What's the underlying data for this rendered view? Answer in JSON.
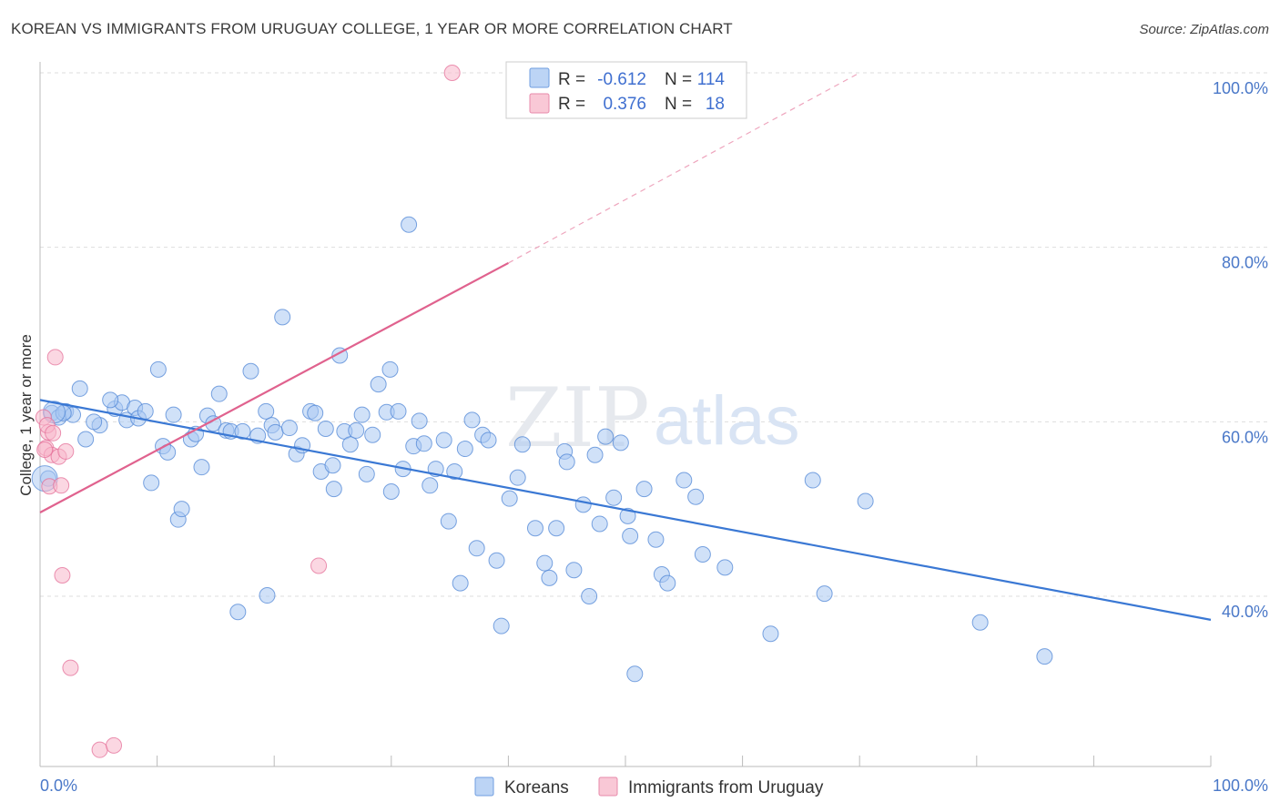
{
  "header": {
    "title": "KOREAN VS IMMIGRANTS FROM URUGUAY COLLEGE, 1 YEAR OR MORE CORRELATION CHART",
    "source": "Source: ZipAtlas.com"
  },
  "watermark": {
    "zip": "ZIP",
    "atlas": "atlas"
  },
  "legend_box": {
    "rows": [
      {
        "r_label": "R =",
        "r_value": "-0.612",
        "n_label": "N =",
        "n_value": "114",
        "color": "#a9c8f2"
      },
      {
        "r_label": "R =",
        "r_value": "0.376",
        "n_label": "N =",
        "n_value": "18",
        "color": "#f7b6cb"
      }
    ]
  },
  "bottom_legend": {
    "items": [
      {
        "label": "Koreans",
        "color": "#a9c8f2"
      },
      {
        "label": "Immigrants from Uruguay",
        "color": "#f7b6cb"
      }
    ]
  },
  "chart_data": {
    "type": "scatter",
    "title": "KOREAN VS IMMIGRANTS FROM URUGUAY COLLEGE, 1 YEAR OR MORE CORRELATION CHART",
    "xlabel": "",
    "ylabel": "College, 1 year or more",
    "xlim": [
      0,
      100
    ],
    "ylim": [
      20,
      102
    ],
    "x_tick_labels": [
      "0.0%",
      "100.0%"
    ],
    "y_ticks": [
      {
        "value": 40,
        "label": "40.0%"
      },
      {
        "value": 60,
        "label": "60.0%"
      },
      {
        "value": 80,
        "label": "80.0%"
      },
      {
        "value": 100,
        "label": "100.0%"
      }
    ],
    "grid": true,
    "legend_position": "bottom",
    "series": [
      {
        "name": "Koreans",
        "color": "#4f86d6",
        "fill": "#a9c8f2",
        "trend": {
          "x0": 0,
          "y0": 62.5,
          "x1": 100,
          "y1": 37.3
        },
        "points": [
          [
            1.0,
            61.0
          ],
          [
            1.6,
            60.5
          ],
          [
            2.2,
            61.2
          ],
          [
            2.8,
            60.8
          ],
          [
            3.4,
            63.8
          ],
          [
            3.9,
            58.0
          ],
          [
            5.1,
            59.6
          ],
          [
            4.6,
            60.0
          ],
          [
            6.4,
            61.5
          ],
          [
            7.0,
            62.2
          ],
          [
            6.0,
            62.5
          ],
          [
            7.4,
            60.2
          ],
          [
            8.1,
            61.6
          ],
          [
            8.4,
            60.4
          ],
          [
            9.0,
            61.2
          ],
          [
            9.5,
            53.0
          ],
          [
            10.1,
            66.0
          ],
          [
            10.5,
            57.2
          ],
          [
            10.9,
            56.5
          ],
          [
            11.4,
            60.8
          ],
          [
            11.8,
            48.8
          ],
          [
            12.1,
            50.0
          ],
          [
            12.9,
            58.0
          ],
          [
            13.3,
            58.6
          ],
          [
            13.8,
            54.8
          ],
          [
            14.3,
            60.7
          ],
          [
            14.8,
            59.8
          ],
          [
            15.3,
            63.2
          ],
          [
            15.9,
            59.0
          ],
          [
            16.3,
            58.9
          ],
          [
            16.9,
            38.2
          ],
          [
            17.3,
            58.9
          ],
          [
            18.0,
            65.8
          ],
          [
            18.6,
            58.4
          ],
          [
            19.3,
            61.2
          ],
          [
            19.4,
            40.1
          ],
          [
            19.8,
            59.6
          ],
          [
            20.1,
            58.8
          ],
          [
            20.7,
            72.0
          ],
          [
            21.3,
            59.3
          ],
          [
            21.9,
            56.3
          ],
          [
            22.4,
            57.3
          ],
          [
            23.1,
            61.2
          ],
          [
            23.5,
            61.0
          ],
          [
            24.0,
            54.3
          ],
          [
            24.4,
            59.2
          ],
          [
            25.1,
            52.3
          ],
          [
            25.6,
            67.6
          ],
          [
            26.0,
            58.9
          ],
          [
            26.5,
            57.4
          ],
          [
            27.0,
            59.0
          ],
          [
            27.5,
            60.8
          ],
          [
            27.9,
            54.0
          ],
          [
            28.4,
            58.5
          ],
          [
            28.9,
            64.3
          ],
          [
            29.6,
            61.1
          ],
          [
            29.9,
            66.0
          ],
          [
            30.6,
            61.2
          ],
          [
            31.0,
            54.6
          ],
          [
            31.5,
            82.6
          ],
          [
            31.9,
            57.2
          ],
          [
            32.4,
            60.1
          ],
          [
            32.8,
            57.5
          ],
          [
            33.3,
            52.7
          ],
          [
            33.8,
            54.6
          ],
          [
            34.5,
            57.9
          ],
          [
            34.9,
            48.6
          ],
          [
            35.4,
            54.3
          ],
          [
            35.9,
            41.5
          ],
          [
            36.3,
            56.9
          ],
          [
            36.9,
            60.2
          ],
          [
            37.3,
            45.5
          ],
          [
            37.8,
            58.5
          ],
          [
            38.3,
            57.9
          ],
          [
            39.0,
            44.1
          ],
          [
            39.4,
            36.6
          ],
          [
            40.1,
            51.2
          ],
          [
            40.8,
            53.6
          ],
          [
            41.2,
            57.4
          ],
          [
            42.3,
            47.8
          ],
          [
            43.1,
            43.8
          ],
          [
            43.5,
            42.1
          ],
          [
            44.1,
            47.8
          ],
          [
            44.8,
            56.6
          ],
          [
            45.0,
            55.4
          ],
          [
            45.6,
            43.0
          ],
          [
            46.4,
            50.5
          ],
          [
            46.9,
            40.0
          ],
          [
            47.4,
            56.2
          ],
          [
            47.8,
            48.3
          ],
          [
            48.3,
            58.3
          ],
          [
            49.0,
            51.3
          ],
          [
            49.6,
            57.6
          ],
          [
            50.2,
            49.2
          ],
          [
            50.4,
            46.9
          ],
          [
            50.8,
            31.1
          ],
          [
            51.6,
            52.3
          ],
          [
            52.6,
            46.5
          ],
          [
            53.1,
            42.5
          ],
          [
            53.6,
            41.5
          ],
          [
            55.0,
            53.3
          ],
          [
            56.0,
            51.4
          ],
          [
            62.4,
            35.7
          ],
          [
            56.6,
            44.8
          ],
          [
            58.5,
            43.3
          ],
          [
            66.0,
            53.3
          ],
          [
            67.0,
            40.3
          ],
          [
            70.5,
            50.9
          ],
          [
            80.3,
            37.0
          ],
          [
            85.8,
            33.1
          ],
          [
            0.7,
            53.5
          ],
          [
            2.0,
            61.0
          ],
          [
            25.0,
            55.0
          ],
          [
            30.0,
            52.0
          ]
        ]
      },
      {
        "name": "Immigrants from Uruguay",
        "color": "#e46f98",
        "fill": "#f7b6cb",
        "trend": {
          "x0": 0,
          "y0": 49.6,
          "x1": 40,
          "y1": 78.2,
          "x_dash_end": 70,
          "y_dash_end": 100
        },
        "points": [
          [
            0.3,
            60.5
          ],
          [
            0.5,
            57.0
          ],
          [
            0.7,
            58.8
          ],
          [
            0.8,
            52.6
          ],
          [
            1.0,
            56.2
          ],
          [
            1.3,
            67.4
          ],
          [
            1.6,
            56.0
          ],
          [
            1.8,
            52.7
          ],
          [
            1.9,
            42.4
          ],
          [
            2.2,
            56.6
          ],
          [
            2.6,
            31.8
          ],
          [
            0.6,
            59.6
          ],
          [
            1.1,
            58.7
          ],
          [
            5.1,
            22.4
          ],
          [
            6.3,
            22.9
          ],
          [
            23.8,
            43.5
          ],
          [
            35.2,
            100.0
          ],
          [
            0.4,
            56.8
          ]
        ]
      }
    ]
  }
}
